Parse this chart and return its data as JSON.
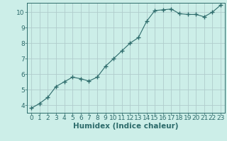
{
  "x": [
    0,
    1,
    2,
    3,
    4,
    5,
    6,
    7,
    8,
    9,
    10,
    11,
    12,
    13,
    14,
    15,
    16,
    17,
    18,
    19,
    20,
    21,
    22,
    23
  ],
  "y": [
    3.8,
    4.1,
    4.5,
    5.2,
    5.5,
    5.8,
    5.7,
    5.55,
    5.8,
    6.5,
    7.0,
    7.5,
    8.0,
    8.35,
    9.4,
    10.1,
    10.15,
    10.2,
    9.9,
    9.85,
    9.85,
    9.7,
    10.0,
    10.45
  ],
  "line_color": "#2d6b6b",
  "marker": "+",
  "marker_size": 4,
  "bg_color": "#cceee8",
  "grid_color": "#b0cccc",
  "xlabel": "Humidex (Indice chaleur)",
  "xlim": [
    -0.5,
    23.5
  ],
  "ylim": [
    3.5,
    10.6
  ],
  "xticks": [
    0,
    1,
    2,
    3,
    4,
    5,
    6,
    7,
    8,
    9,
    10,
    11,
    12,
    13,
    14,
    15,
    16,
    17,
    18,
    19,
    20,
    21,
    22,
    23
  ],
  "yticks": [
    4,
    5,
    6,
    7,
    8,
    9,
    10
  ],
  "tick_color": "#2d6b6b",
  "label_color": "#2d6b6b",
  "axis_color": "#2d6b6b",
  "font_size_ticks": 6.5,
  "font_size_label": 7.5
}
